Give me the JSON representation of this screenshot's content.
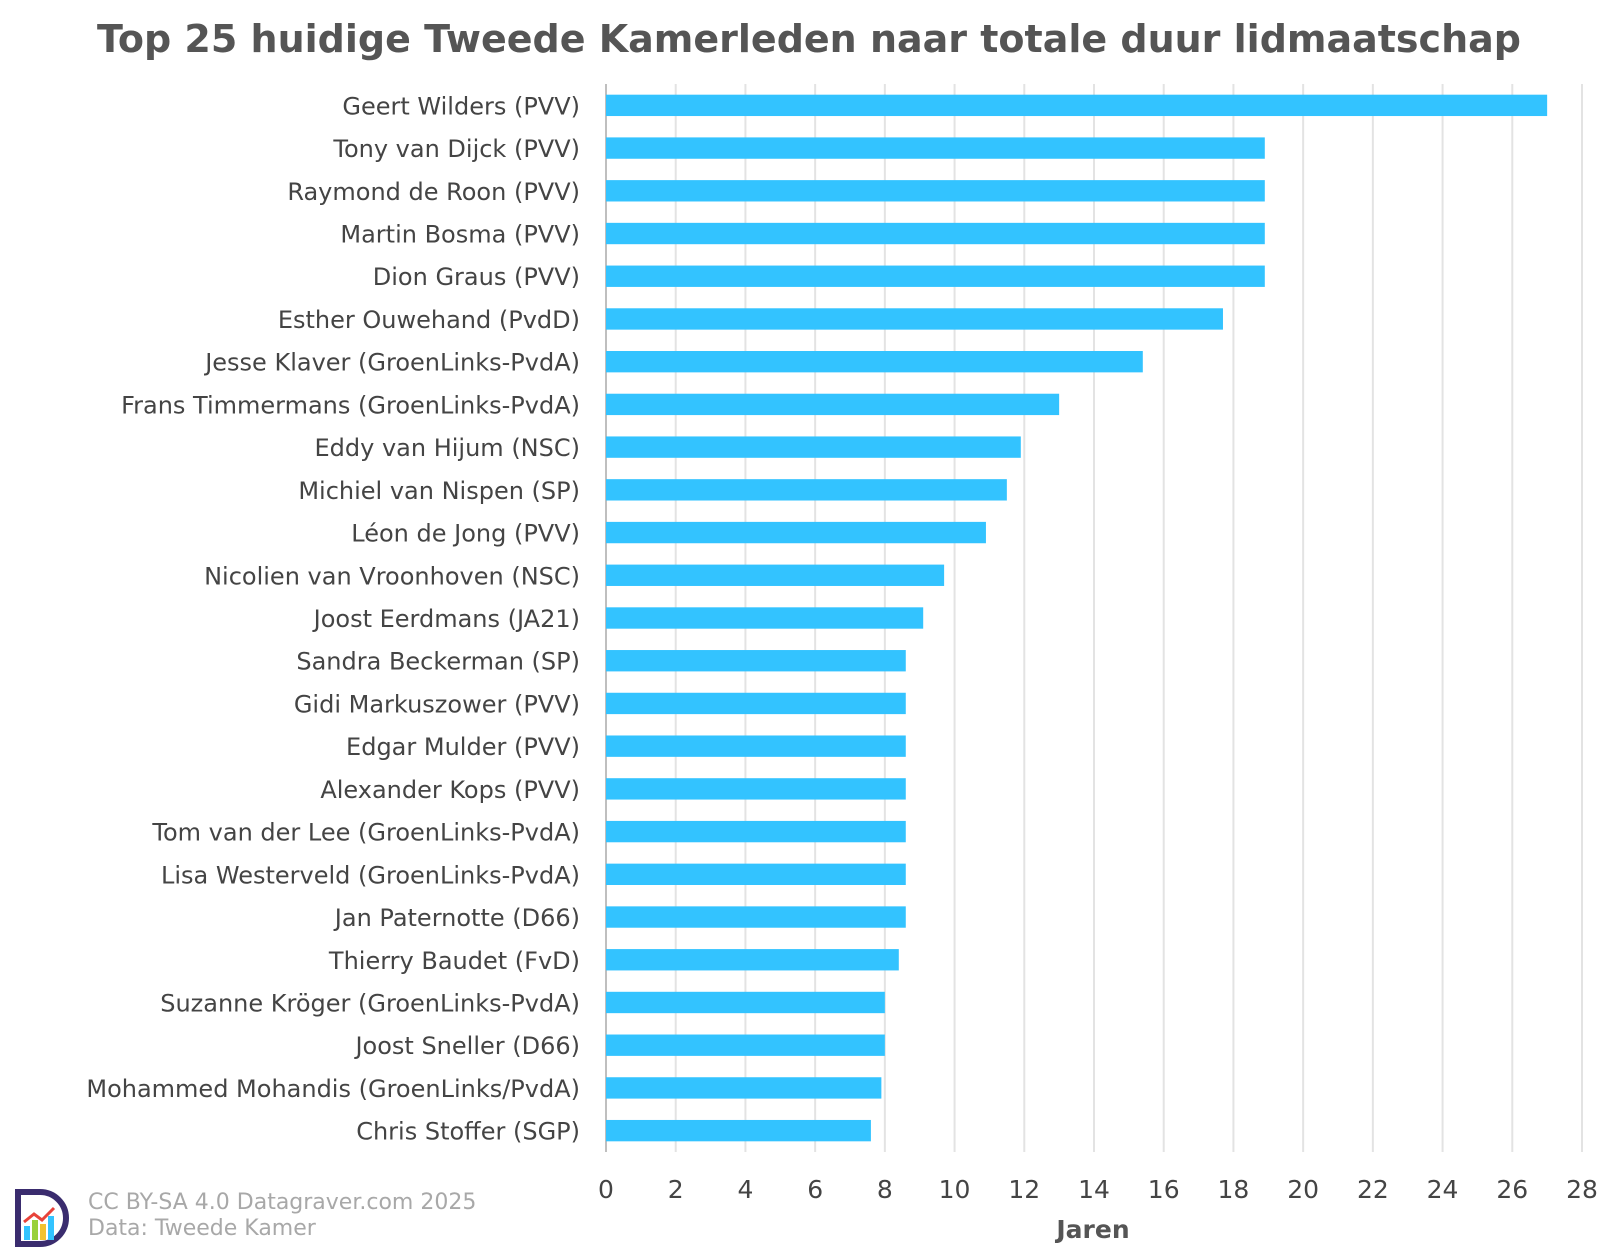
{
  "chart_data": {
    "type": "bar",
    "orientation": "horizontal",
    "title": "Top 25 huidige Tweede Kamerleden naar totale duur lidmaatschap",
    "xlabel": "Jaren",
    "ylabel": "",
    "xlim": [
      0,
      28
    ],
    "xticks": [
      0,
      2,
      4,
      6,
      8,
      10,
      12,
      14,
      16,
      18,
      20,
      22,
      24,
      26,
      28
    ],
    "grid": "vertical",
    "bar_color": "#33C3FF",
    "categories": [
      "Geert Wilders (PVV)",
      "Tony van Dijck (PVV)",
      "Raymond de Roon (PVV)",
      "Martin Bosma (PVV)",
      "Dion Graus (PVV)",
      "Esther Ouwehand (PvdD)",
      "Jesse Klaver (GroenLinks-PvdA)",
      "Frans Timmermans (GroenLinks-PvdA)",
      "Eddy van Hijum (NSC)",
      "Michiel van Nispen (SP)",
      "Léon de Jong (PVV)",
      "Nicolien van Vroonhoven (NSC)",
      "Joost Eerdmans (JA21)",
      "Sandra Beckerman (SP)",
      "Gidi Markuszower (PVV)",
      "Edgar Mulder (PVV)",
      "Alexander Kops (PVV)",
      "Tom van der Lee (GroenLinks-PvdA)",
      "Lisa Westerveld (GroenLinks-PvdA)",
      "Jan Paternotte (D66)",
      "Thierry Baudet (FvD)",
      "Suzanne Kröger (GroenLinks-PvdA)",
      "Joost Sneller (D66)",
      "Mohammed Mohandis (GroenLinks/PvdA)",
      "Chris Stoffer (SGP)"
    ],
    "values": [
      27.0,
      18.9,
      18.9,
      18.9,
      18.9,
      17.7,
      15.4,
      13.0,
      11.9,
      11.5,
      10.9,
      9.7,
      9.1,
      8.6,
      8.6,
      8.6,
      8.6,
      8.6,
      8.6,
      8.6,
      8.4,
      8.0,
      8.0,
      7.9,
      7.6
    ]
  },
  "credit": {
    "license": "CC BY-SA 4.0 Datagraver.com 2025",
    "source": "Data: Tweede Kamer"
  },
  "logo": {
    "icon": "datagraver-logo-icon"
  }
}
